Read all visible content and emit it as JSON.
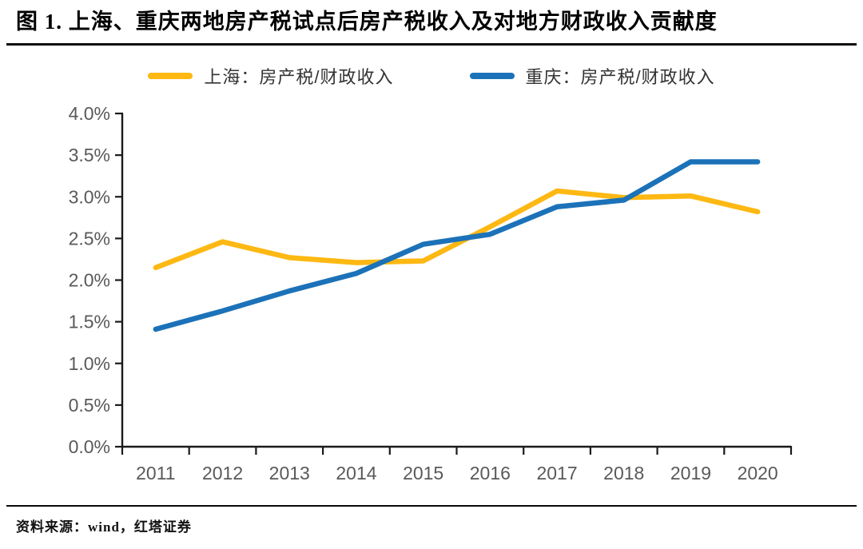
{
  "title": "图 1. 上海、重庆两地房产税试点后房产税收入及对地方财政收入贡献度",
  "source_note": "资料来源：wind，红塔证券",
  "colors": {
    "shanghai_line": "#FDB813",
    "chongqing_line": "#1C72B8",
    "axis": "#1a1a1a",
    "tick_label": "#595959",
    "rule": "#0a0a0a"
  },
  "chart_data": {
    "type": "line",
    "title": "",
    "xlabel": "",
    "ylabel": "",
    "categories": [
      "2011",
      "2012",
      "2013",
      "2014",
      "2015",
      "2016",
      "2017",
      "2018",
      "2019",
      "2020"
    ],
    "series": [
      {
        "id": "shanghai",
        "name": "上海：房产税/财政收入",
        "color": "#FDB813",
        "values": [
          2.15,
          2.46,
          2.27,
          2.21,
          2.23,
          2.64,
          3.07,
          2.99,
          3.01,
          2.82
        ]
      },
      {
        "id": "chongqing",
        "name": "重庆：房产税/财政收入",
        "color": "#1C72B8",
        "values": [
          1.41,
          1.63,
          1.87,
          2.08,
          2.43,
          2.55,
          2.88,
          2.96,
          3.42,
          3.42
        ]
      }
    ],
    "ylim": [
      0,
      4
    ],
    "ytick_step": 0.5,
    "ytick_labels": [
      "0.0%",
      "0.5%",
      "1.0%",
      "1.5%",
      "2.0%",
      "2.5%",
      "3.0%",
      "3.5%",
      "4.0%"
    ],
    "grid": false,
    "legend_position": "top"
  }
}
